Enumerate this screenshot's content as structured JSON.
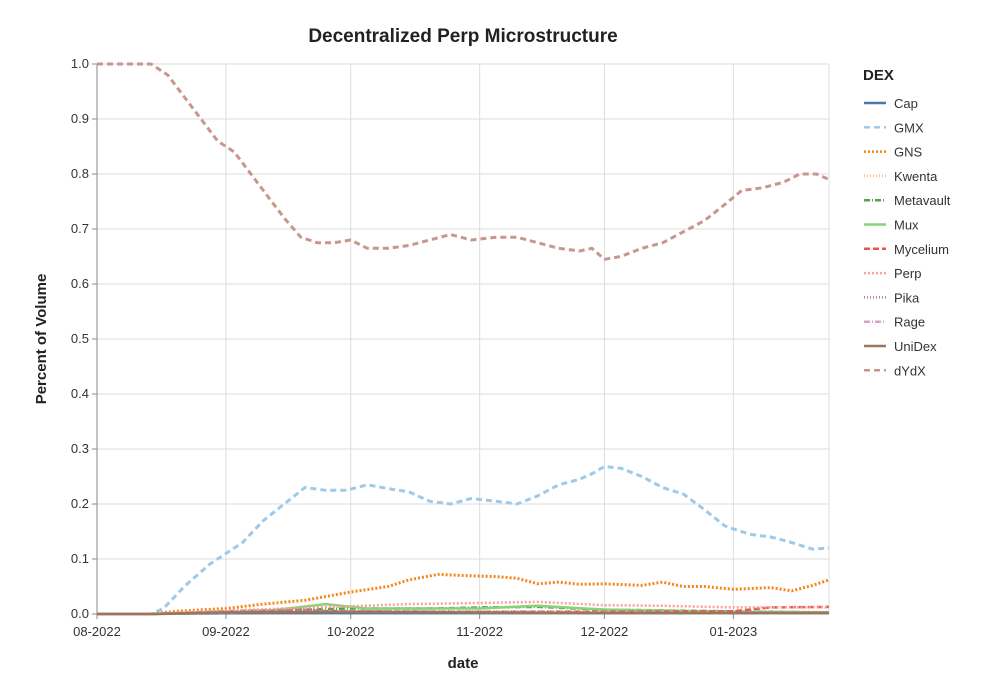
{
  "chart_data": {
    "type": "line",
    "title": "Decentralized Perp Microstructure",
    "xlabel": "date",
    "ylabel": "Percent of Volume",
    "ylim": [
      0,
      1.0
    ],
    "grid": true,
    "legend_title": "DEX",
    "legend_position": "right",
    "x_ticks": [
      {
        "label": "08-2022",
        "date": "2022-08-01"
      },
      {
        "label": "09-2022",
        "date": "2022-09-01"
      },
      {
        "label": "10-2022",
        "date": "2022-10-01"
      },
      {
        "label": "11-2022",
        "date": "2022-11-01"
      },
      {
        "label": "12-2022",
        "date": "2022-12-01"
      },
      {
        "label": "01-2023",
        "date": "2023-01-01"
      }
    ],
    "y_ticks": [
      "0.0",
      "0.1",
      "0.2",
      "0.3",
      "0.4",
      "0.5",
      "0.6",
      "0.7",
      "0.8",
      "0.9",
      "1.0"
    ],
    "x_range": [
      "2022-08-01",
      "2023-01-24"
    ],
    "series": [
      {
        "name": "Cap",
        "color": "#4c78a8",
        "dash": "",
        "points": [
          [
            "2022-08-01",
            0
          ],
          [
            "2022-08-14",
            0
          ],
          [
            "2022-08-25",
            0.001
          ],
          [
            "2022-09-10",
            0.002
          ],
          [
            "2022-10-01",
            0.002
          ],
          [
            "2022-11-01",
            0.002
          ],
          [
            "2022-12-01",
            0.002
          ],
          [
            "2023-01-01",
            0.002
          ],
          [
            "2023-01-24",
            0.002
          ]
        ]
      },
      {
        "name": "GMX",
        "color": "#9ecae9",
        "dash": "6,4",
        "points": [
          [
            "2022-08-01",
            0
          ],
          [
            "2022-08-14",
            0
          ],
          [
            "2022-08-17",
            0.01
          ],
          [
            "2022-08-22",
            0.05
          ],
          [
            "2022-08-28",
            0.09
          ],
          [
            "2022-09-01",
            0.11
          ],
          [
            "2022-09-05",
            0.13
          ],
          [
            "2022-09-10",
            0.17
          ],
          [
            "2022-09-15",
            0.2
          ],
          [
            "2022-09-20",
            0.23
          ],
          [
            "2022-09-25",
            0.225
          ],
          [
            "2022-09-30",
            0.225
          ],
          [
            "2022-10-05",
            0.235
          ],
          [
            "2022-10-10",
            0.228
          ],
          [
            "2022-10-15",
            0.222
          ],
          [
            "2022-10-20",
            0.205
          ],
          [
            "2022-10-25",
            0.2
          ],
          [
            "2022-10-30",
            0.21
          ],
          [
            "2022-11-05",
            0.205
          ],
          [
            "2022-11-10",
            0.2
          ],
          [
            "2022-11-15",
            0.215
          ],
          [
            "2022-11-20",
            0.235
          ],
          [
            "2022-11-25",
            0.245
          ],
          [
            "2022-11-28",
            0.255
          ],
          [
            "2022-12-01",
            0.268
          ],
          [
            "2022-12-05",
            0.265
          ],
          [
            "2022-12-10",
            0.25
          ],
          [
            "2022-12-15",
            0.23
          ],
          [
            "2022-12-20",
            0.218
          ],
          [
            "2022-12-25",
            0.19
          ],
          [
            "2022-12-30",
            0.16
          ],
          [
            "2023-01-05",
            0.145
          ],
          [
            "2023-01-10",
            0.14
          ],
          [
            "2023-01-15",
            0.13
          ],
          [
            "2023-01-20",
            0.118
          ],
          [
            "2023-01-24",
            0.12
          ]
        ]
      },
      {
        "name": "GNS",
        "color": "#f58518",
        "dash": "2,2",
        "points": [
          [
            "2022-08-01",
            0
          ],
          [
            "2022-08-14",
            0
          ],
          [
            "2022-08-20",
            0.005
          ],
          [
            "2022-09-01",
            0.01
          ],
          [
            "2022-09-10",
            0.018
          ],
          [
            "2022-09-20",
            0.025
          ],
          [
            "2022-10-01",
            0.04
          ],
          [
            "2022-10-10",
            0.05
          ],
          [
            "2022-10-15",
            0.062
          ],
          [
            "2022-10-22",
            0.072
          ],
          [
            "2022-10-28",
            0.07
          ],
          [
            "2022-11-05",
            0.068
          ],
          [
            "2022-11-10",
            0.065
          ],
          [
            "2022-11-15",
            0.055
          ],
          [
            "2022-11-20",
            0.058
          ],
          [
            "2022-11-25",
            0.054
          ],
          [
            "2022-12-01",
            0.055
          ],
          [
            "2022-12-10",
            0.052
          ],
          [
            "2022-12-15",
            0.058
          ],
          [
            "2022-12-20",
            0.05
          ],
          [
            "2022-12-25",
            0.05
          ],
          [
            "2023-01-01",
            0.045
          ],
          [
            "2023-01-10",
            0.048
          ],
          [
            "2023-01-15",
            0.042
          ],
          [
            "2023-01-20",
            0.052
          ],
          [
            "2023-01-24",
            0.062
          ]
        ]
      },
      {
        "name": "Kwenta",
        "color": "#ffbf79",
        "dash": "1,2",
        "points": [
          [
            "2022-08-01",
            0
          ],
          [
            "2022-08-14",
            0
          ],
          [
            "2022-08-25",
            0.003
          ],
          [
            "2022-09-15",
            0.006
          ],
          [
            "2022-10-01",
            0.006
          ],
          [
            "2022-11-01",
            0.005
          ],
          [
            "2022-12-01",
            0.005
          ],
          [
            "2023-01-01",
            0.004
          ],
          [
            "2023-01-24",
            0.004
          ]
        ]
      },
      {
        "name": "Metavault",
        "color": "#54a24b",
        "dash": "6,2,1,2",
        "points": [
          [
            "2022-08-01",
            0
          ],
          [
            "2022-08-14",
            0
          ],
          [
            "2022-09-01",
            0.005
          ],
          [
            "2022-10-01",
            0.01
          ],
          [
            "2022-10-20",
            0.01
          ],
          [
            "2022-11-01",
            0.012
          ],
          [
            "2022-11-15",
            0.013
          ],
          [
            "2022-12-01",
            0.008
          ],
          [
            "2023-01-01",
            0.005
          ],
          [
            "2023-01-24",
            0.003
          ]
        ]
      },
      {
        "name": "Mux",
        "color": "#88d27a",
        "dash": "",
        "points": [
          [
            "2022-08-01",
            0
          ],
          [
            "2022-08-14",
            0
          ],
          [
            "2022-08-25",
            0.002
          ],
          [
            "2022-09-10",
            0.005
          ],
          [
            "2022-09-25",
            0.018
          ],
          [
            "2022-10-05",
            0.01
          ],
          [
            "2022-11-01",
            0.01
          ],
          [
            "2022-11-15",
            0.015
          ],
          [
            "2022-12-01",
            0.008
          ],
          [
            "2023-01-01",
            0.004
          ],
          [
            "2023-01-24",
            0.003
          ]
        ]
      },
      {
        "name": "Mycelium",
        "color": "#e45756",
        "dash": "6,3",
        "points": [
          [
            "2022-08-01",
            0
          ],
          [
            "2022-08-14",
            0
          ],
          [
            "2022-08-25",
            0.003
          ],
          [
            "2022-09-15",
            0.006
          ],
          [
            "2022-10-01",
            0.005
          ],
          [
            "2022-11-01",
            0.004
          ],
          [
            "2022-12-01",
            0.004
          ],
          [
            "2023-01-01",
            0.005
          ],
          [
            "2023-01-10",
            0.012
          ],
          [
            "2023-01-24",
            0.013
          ]
        ]
      },
      {
        "name": "Perp",
        "color": "#ff9d98",
        "dash": "2,2",
        "points": [
          [
            "2022-08-01",
            0
          ],
          [
            "2022-08-14",
            0
          ],
          [
            "2022-08-25",
            0.004
          ],
          [
            "2022-09-15",
            0.01
          ],
          [
            "2022-10-01",
            0.014
          ],
          [
            "2022-10-15",
            0.018
          ],
          [
            "2022-11-01",
            0.02
          ],
          [
            "2022-11-15",
            0.022
          ],
          [
            "2022-12-01",
            0.016
          ],
          [
            "2022-12-15",
            0.015
          ],
          [
            "2023-01-01",
            0.012
          ],
          [
            "2023-01-24",
            0.012
          ]
        ]
      },
      {
        "name": "Pika",
        "color": "#b279a2",
        "dash": "1,2",
        "points": [
          [
            "2022-08-01",
            0
          ],
          [
            "2022-08-14",
            0
          ],
          [
            "2022-09-01",
            0.003
          ],
          [
            "2022-09-20",
            0.008
          ],
          [
            "2022-10-01",
            0.004
          ],
          [
            "2022-11-01",
            0.003
          ],
          [
            "2022-12-01",
            0.002
          ],
          [
            "2023-01-01",
            0.002
          ],
          [
            "2023-01-24",
            0.002
          ]
        ]
      },
      {
        "name": "Rage",
        "color": "#d6a5c9",
        "dash": "6,2,1,2",
        "points": [
          [
            "2022-08-01",
            0
          ],
          [
            "2022-08-14",
            0
          ],
          [
            "2022-09-01",
            0.003
          ],
          [
            "2022-10-01",
            0.005
          ],
          [
            "2022-11-01",
            0.004
          ],
          [
            "2022-12-01",
            0.003
          ],
          [
            "2023-01-01",
            0.002
          ],
          [
            "2023-01-24",
            0.002
          ]
        ]
      },
      {
        "name": "UniDex",
        "color": "#9d755d",
        "dash": "",
        "points": [
          [
            "2022-08-01",
            0
          ],
          [
            "2022-08-14",
            0
          ],
          [
            "2022-09-01",
            0.003
          ],
          [
            "2022-10-01",
            0.004
          ],
          [
            "2022-11-01",
            0.003
          ],
          [
            "2022-12-01",
            0.002
          ],
          [
            "2023-01-01",
            0.002
          ],
          [
            "2023-01-24",
            0.002
          ]
        ]
      },
      {
        "name": "dYdX",
        "color": "#c9968f",
        "dash": "6,4",
        "points": [
          [
            "2022-08-01",
            1.0
          ],
          [
            "2022-08-14",
            1.0
          ],
          [
            "2022-08-18",
            0.98
          ],
          [
            "2022-08-22",
            0.94
          ],
          [
            "2022-08-26",
            0.9
          ],
          [
            "2022-08-30",
            0.86
          ],
          [
            "2022-09-03",
            0.84
          ],
          [
            "2022-09-07",
            0.8
          ],
          [
            "2022-09-11",
            0.76
          ],
          [
            "2022-09-15",
            0.72
          ],
          [
            "2022-09-19",
            0.685
          ],
          [
            "2022-09-23",
            0.675
          ],
          [
            "2022-09-27",
            0.675
          ],
          [
            "2022-10-01",
            0.68
          ],
          [
            "2022-10-05",
            0.665
          ],
          [
            "2022-10-10",
            0.665
          ],
          [
            "2022-10-15",
            0.67
          ],
          [
            "2022-10-20",
            0.68
          ],
          [
            "2022-10-25",
            0.69
          ],
          [
            "2022-10-30",
            0.68
          ],
          [
            "2022-11-05",
            0.685
          ],
          [
            "2022-11-10",
            0.685
          ],
          [
            "2022-11-15",
            0.675
          ],
          [
            "2022-11-20",
            0.665
          ],
          [
            "2022-11-25",
            0.66
          ],
          [
            "2022-11-28",
            0.665
          ],
          [
            "2022-12-01",
            0.645
          ],
          [
            "2022-12-05",
            0.65
          ],
          [
            "2022-12-10",
            0.665
          ],
          [
            "2022-12-15",
            0.675
          ],
          [
            "2022-12-20",
            0.695
          ],
          [
            "2022-12-25",
            0.715
          ],
          [
            "2022-12-30",
            0.745
          ],
          [
            "2023-01-03",
            0.77
          ],
          [
            "2023-01-08",
            0.775
          ],
          [
            "2023-01-13",
            0.785
          ],
          [
            "2023-01-17",
            0.8
          ],
          [
            "2023-01-21",
            0.8
          ],
          [
            "2023-01-24",
            0.79
          ]
        ]
      }
    ]
  }
}
